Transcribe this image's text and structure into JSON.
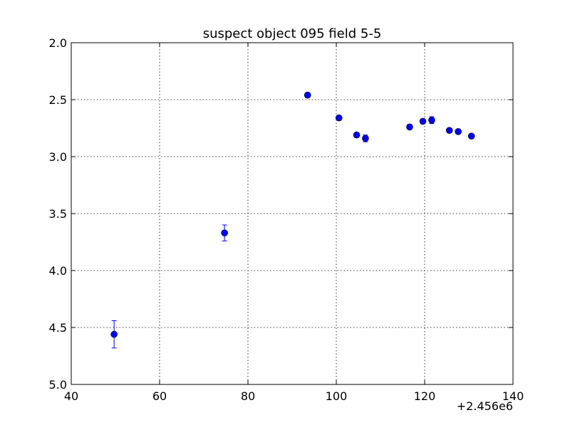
{
  "chart_data": {
    "type": "scatter",
    "title": "suspect object 095 field 5-5",
    "xlabel": "",
    "ylabel": "",
    "x_offset_label": "+2.456e6",
    "xlim": [
      40,
      140
    ],
    "ylim": [
      2.0,
      5.0
    ],
    "y_inverted": true,
    "grid": true,
    "x_ticks": [
      40,
      60,
      80,
      100,
      120,
      140
    ],
    "x_tick_labels": [
      "40",
      "60",
      "80",
      "100",
      "120",
      "140"
    ],
    "y_ticks": [
      2.0,
      2.5,
      3.0,
      3.5,
      4.0,
      4.5,
      5.0
    ],
    "y_tick_labels": [
      "2.0",
      "2.5",
      "3.0",
      "3.5",
      "4.0",
      "4.5",
      "5.0"
    ],
    "series": [
      {
        "color": "#0000ff",
        "points": [
          {
            "x": 49.7,
            "y": 4.56,
            "err": 0.12
          },
          {
            "x": 74.7,
            "y": 3.67,
            "err": 0.07
          },
          {
            "x": 93.5,
            "y": 2.46,
            "err": 0.02
          },
          {
            "x": 100.6,
            "y": 2.66,
            "err": 0.02
          },
          {
            "x": 104.6,
            "y": 2.81,
            "err": 0.02
          },
          {
            "x": 106.6,
            "y": 2.84,
            "err": 0.03
          },
          {
            "x": 116.6,
            "y": 2.74,
            "err": 0.02
          },
          {
            "x": 119.6,
            "y": 2.69,
            "err": 0.02
          },
          {
            "x": 121.6,
            "y": 2.68,
            "err": 0.03
          },
          {
            "x": 125.6,
            "y": 2.77,
            "err": 0.01
          },
          {
            "x": 127.6,
            "y": 2.78,
            "err": 0.01
          },
          {
            "x": 130.6,
            "y": 2.82,
            "err": 0.01
          }
        ]
      }
    ]
  }
}
